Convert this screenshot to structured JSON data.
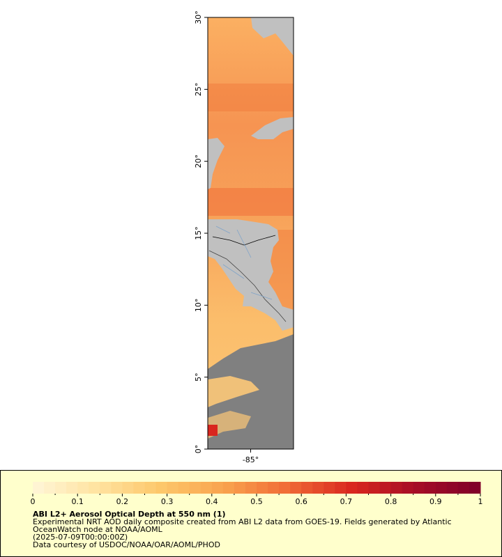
{
  "map": {
    "latlim": [
      0,
      30
    ],
    "lonlim": [
      -88,
      -82
    ],
    "lat_ticks": [
      {
        "value": 0,
        "label": "0°"
      },
      {
        "value": 5,
        "label": "5°"
      },
      {
        "value": 10,
        "label": "10°"
      },
      {
        "value": 15,
        "label": "15°"
      },
      {
        "value": 20,
        "label": "20°"
      },
      {
        "value": 25,
        "label": "25°"
      },
      {
        "value": 30,
        "label": "30°"
      }
    ],
    "lon_ticks": [
      {
        "value": -85,
        "label": "-85°"
      }
    ]
  },
  "colorbar": {
    "lim": [
      0,
      1
    ],
    "ticks": [
      0,
      0.1,
      0.2,
      0.3,
      0.4,
      0.5,
      0.6,
      0.7,
      0.8,
      0.9,
      1
    ],
    "colors": [
      "#fff6d8",
      "#ffe3a0",
      "#fdc76a",
      "#f9a24e",
      "#f06a35",
      "#d9261f",
      "#a50d26",
      "#7e0029"
    ]
  },
  "legend": {
    "title": "ABI L2+ Aerosol Optical Depth at 550 nm (1)",
    "lines": [
      "Experimental NRT AOD daily composite created from ABI L2 data from GOES-19. Fields generated by Atlantic",
      "OceanWatch node at NOAA/AOML",
      "(2025-07-09T00:00:00Z)",
      "Data courtesy of USDOC/NOAA/OAR/AOML/PHOD"
    ]
  }
}
